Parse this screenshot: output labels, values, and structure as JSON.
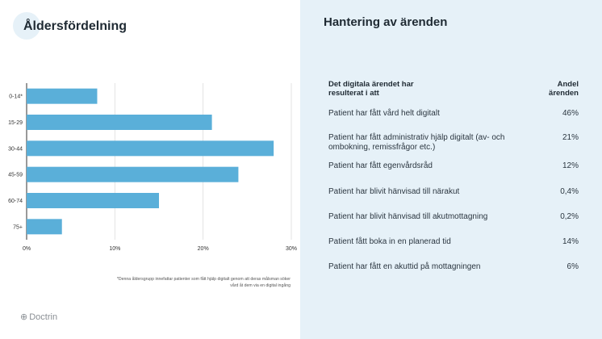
{
  "left": {
    "title": "Åldersfördelning",
    "footnote": "*Denna åldersgrupp innefattar patienter som fått hjälp digitalt genom att deras målsman söker vård åt dem via en digital ingång",
    "logo_text": "Doctrin",
    "logo_icon": "doctrin-logo-icon"
  },
  "chart_data": {
    "type": "bar",
    "orientation": "horizontal",
    "categories": [
      "0-14*",
      "15-29",
      "30-44",
      "45-59",
      "60-74",
      "75+"
    ],
    "values": [
      8,
      21,
      28,
      24,
      15,
      4
    ],
    "x_ticks": [
      "0%",
      "10%",
      "20%",
      "30%"
    ],
    "xlim": [
      0,
      30
    ],
    "bar_color": "#5aafd9",
    "grid": true
  },
  "right": {
    "title": "Hantering av ärenden",
    "col_left": "Det digitala ärendet har resulterat i att",
    "col_right_line1": "Andel",
    "col_right_line2": "ärenden",
    "rows": [
      {
        "label": "Patient har fått vård helt digitalt",
        "value": "46%"
      },
      {
        "label": "Patient har fått administrativ hjälp digitalt (av- och ombokning, remissfrågor etc.)",
        "value": "21%"
      },
      {
        "label": "Patient har fått egenvårdsråd",
        "value": "12%"
      },
      {
        "label": "Patient har blivit hänvisad till närakut",
        "value": "0,4%"
      },
      {
        "label": "Patient har blivit hänvisad till akutmottagning",
        "value": "0,2%"
      },
      {
        "label": "Patient fått boka in en planerad tid",
        "value": "14%"
      },
      {
        "label": "Patient har fått en akuttid på mottagningen",
        "value": "6%"
      }
    ],
    "background": "#e6f1f8"
  }
}
